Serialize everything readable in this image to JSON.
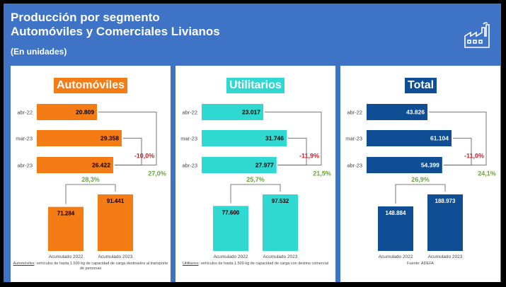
{
  "header": {
    "title_line1": "Producción por segmento",
    "title_line2": "Automóviles y Comerciales Livianos",
    "subtitle": "(En unidades)",
    "icon": "factory-icon"
  },
  "colors": {
    "background": "#3e73c6",
    "automoviles": "#f57c14",
    "utilitarios": "#2fd9d2",
    "total": "#0f4d95",
    "negative": "#c0262f",
    "positive": "#6aa53c"
  },
  "notes": {
    "automoviles_term": "Automóviles",
    "automoviles_text": ": vehículos de hasta 1.500 kg de capacidad de carga destinados al transporte de personas",
    "utilitarios_term": "Utilitarios",
    "utilitarios_text": ": vehículos de hasta 1.500 kg de capacidad de carga con destino comercial",
    "source": "Fuente: ADEFA"
  },
  "chart_data": [
    {
      "type": "bar",
      "title": "Automóviles",
      "monthly": {
        "categories": [
          "abr-22",
          "mar-23",
          "abr-23"
        ],
        "values": [
          20809,
          29358,
          26422
        ],
        "labels": [
          "20.809",
          "29.358",
          "26.422"
        ]
      },
      "var_monthly": "-10,0%",
      "var_yearly": "27,0%",
      "accumulated": {
        "categories": [
          "Acumulado 2022",
          "Acumulado 2023"
        ],
        "values": [
          71284,
          91441
        ],
        "labels": [
          "71.284",
          "91.441"
        ]
      },
      "var_accumulated": "28,3%"
    },
    {
      "type": "bar",
      "title": "Utilitarios",
      "monthly": {
        "categories": [
          "abr-22",
          "mar-23",
          "abr-23"
        ],
        "values": [
          23017,
          31746,
          27977
        ],
        "labels": [
          "23.017",
          "31.746",
          "27.977"
        ]
      },
      "var_monthly": "-11,9%",
      "var_yearly": "21,5%",
      "accumulated": {
        "categories": [
          "Acumulado 2022",
          "Acumulado 2023"
        ],
        "values": [
          77600,
          97532
        ],
        "labels": [
          "77.600",
          "97.532"
        ]
      },
      "var_accumulated": "25,7%"
    },
    {
      "type": "bar",
      "title": "Total",
      "monthly": {
        "categories": [
          "abr-22",
          "mar-23",
          "abr-23"
        ],
        "values": [
          43826,
          61104,
          54399
        ],
        "labels": [
          "43.826",
          "61.104",
          "54.399"
        ]
      },
      "var_monthly": "-11,0%",
      "var_yearly": "24,1%",
      "accumulated": {
        "categories": [
          "Acumulado 2022",
          "Acumulado 2023"
        ],
        "values": [
          148884,
          188973
        ],
        "labels": [
          "148.884",
          "188.973"
        ]
      },
      "var_accumulated": "26,9%"
    }
  ]
}
